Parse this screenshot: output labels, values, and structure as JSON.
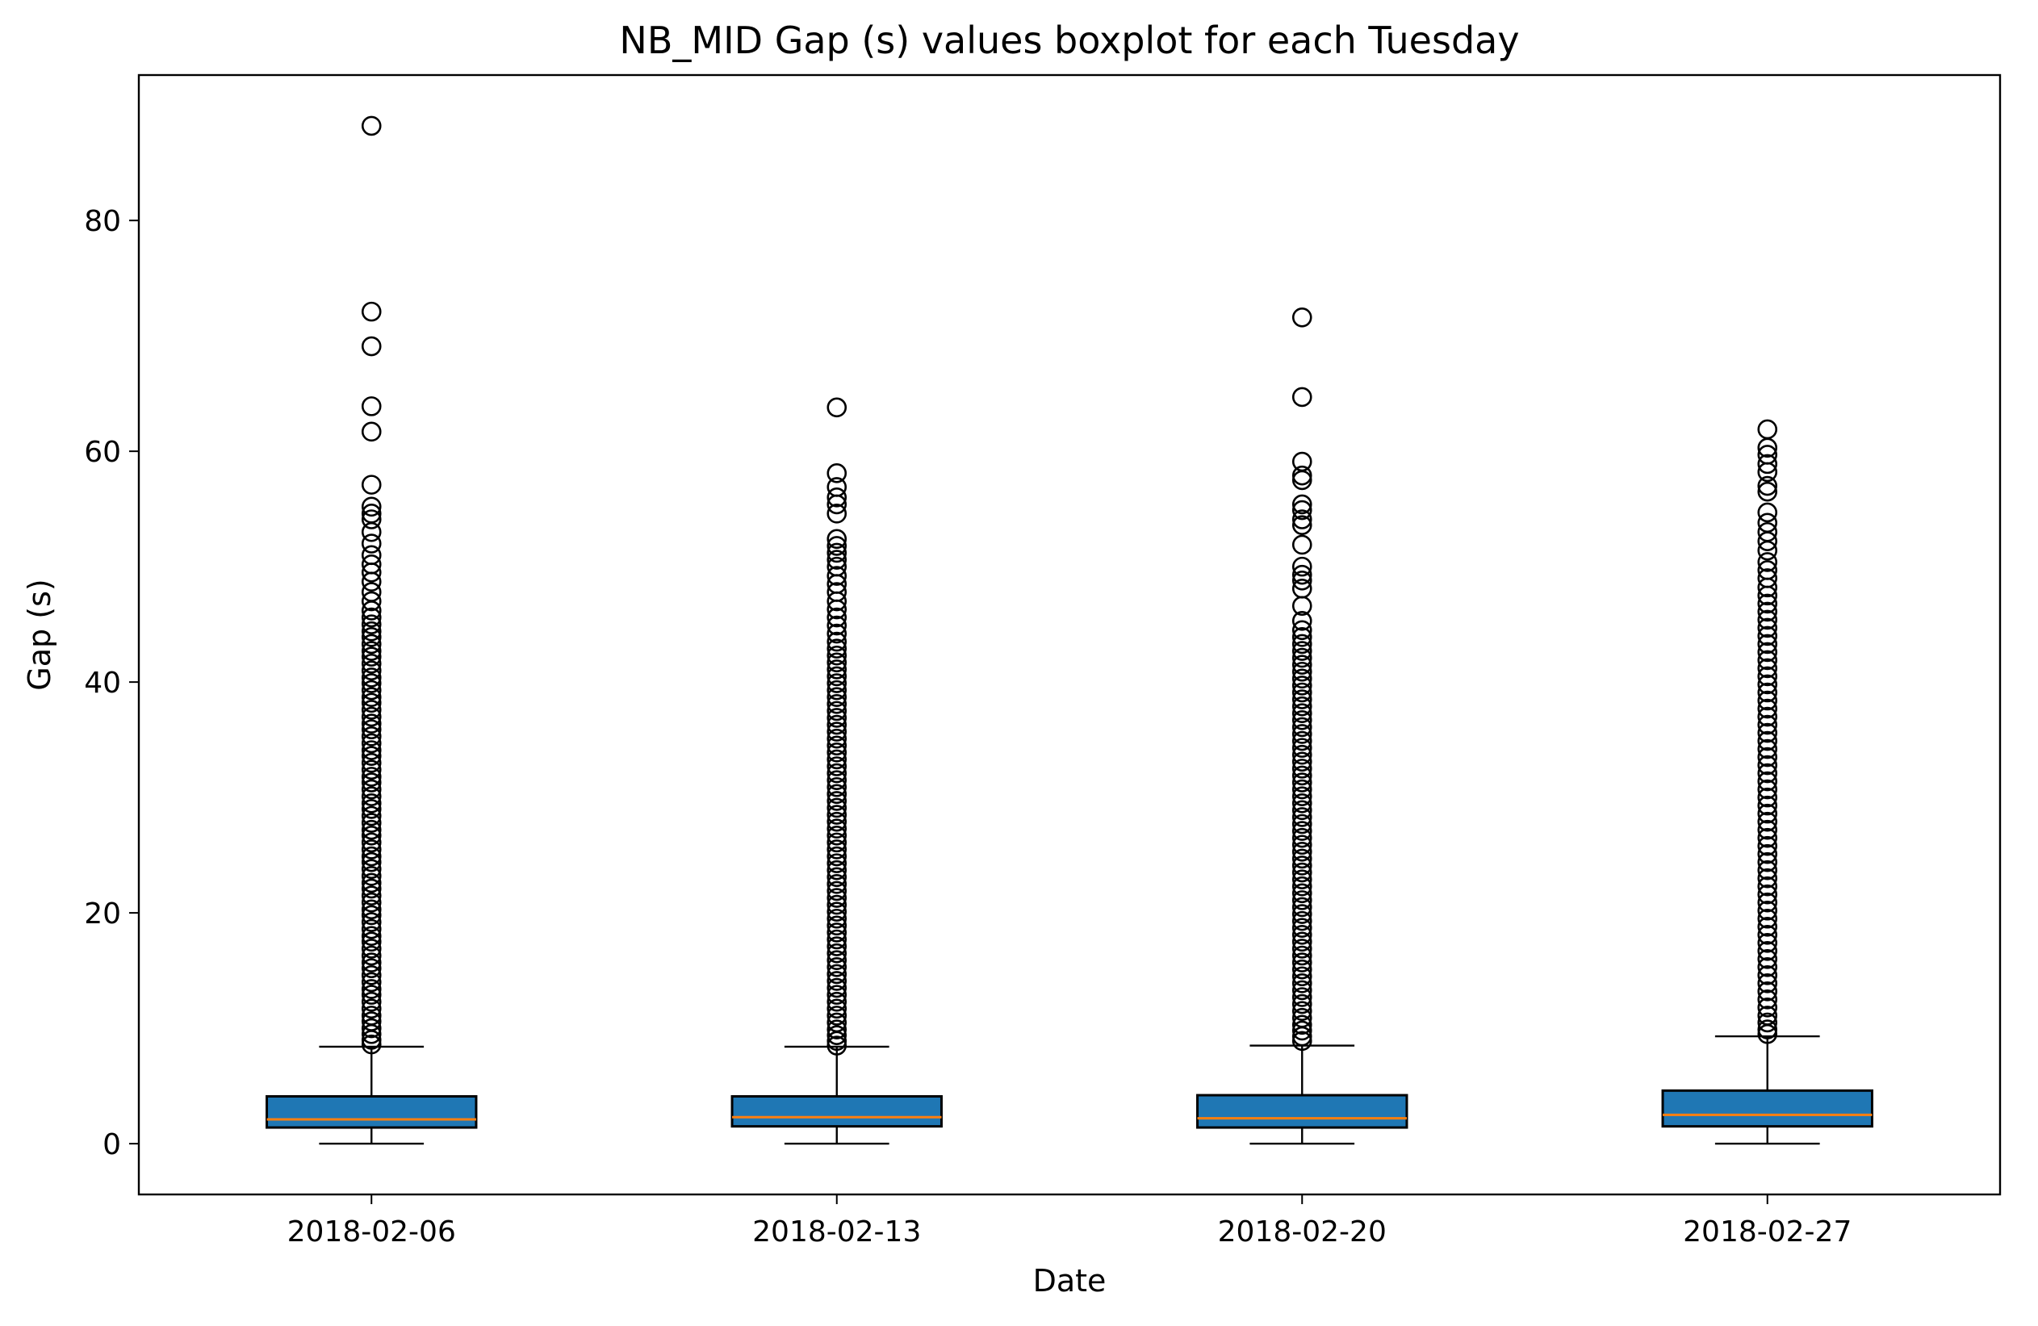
{
  "chart_data": {
    "type": "box",
    "title": "NB_MID Gap (s) values boxplot for each Tuesday",
    "xlabel": "Date",
    "ylabel": "Gap (s)",
    "ylim": [
      -4.4,
      92.6
    ],
    "yticks": [
      0,
      20,
      40,
      60,
      80
    ],
    "grid": false,
    "colors": {
      "box_fill": "#1f77b4",
      "median": "#ff7f0e",
      "edge": "#000000"
    },
    "categories": [
      "2018-02-06",
      "2018-02-13",
      "2018-02-20",
      "2018-02-27"
    ],
    "boxes": [
      {
        "category": "2018-02-06",
        "whisker_low": 0,
        "q1": 1.4,
        "median": 2.1,
        "q3": 4.1,
        "whisker_high": 8.4,
        "outliers": [
          88.2,
          72.1,
          69.1,
          63.9,
          61.7,
          57.1,
          55.2,
          54.6,
          54.1,
          53.0,
          52.0,
          51.0,
          50.2,
          49.5,
          48.7,
          47.8,
          47.0,
          46.2,
          45.6,
          45.0,
          44.4,
          43.9,
          43.3,
          42.7,
          42.2,
          41.6,
          41.0,
          40.4,
          39.9,
          39.3,
          38.7,
          38.2,
          37.6,
          37.0,
          36.4,
          35.9,
          35.3,
          34.7,
          34.1,
          33.6,
          33.0,
          32.4,
          31.8,
          31.3,
          30.7,
          30.1,
          29.5,
          29.0,
          28.4,
          27.8,
          27.2,
          26.7,
          26.1,
          25.5,
          24.9,
          24.4,
          23.8,
          23.2,
          22.6,
          22.1,
          21.5,
          20.9,
          20.3,
          19.8,
          19.2,
          18.6,
          18.0,
          17.5,
          16.9,
          16.3,
          15.7,
          15.2,
          14.6,
          14.0,
          13.4,
          12.9,
          12.3,
          11.7,
          11.1,
          10.6,
          10.0,
          9.5,
          9.0,
          8.6
        ]
      },
      {
        "category": "2018-02-13",
        "whisker_low": 0,
        "q1": 1.5,
        "median": 2.3,
        "q3": 4.1,
        "whisker_high": 8.4,
        "outliers": [
          63.8,
          58.1,
          56.9,
          56.0,
          55.4,
          54.6,
          52.4,
          51.8,
          51.2,
          50.6,
          50.0,
          49.2,
          48.5,
          47.8,
          47.0,
          46.3,
          45.6,
          44.9,
          44.2,
          43.5,
          42.9,
          42.3,
          41.7,
          41.1,
          40.5,
          39.9,
          39.3,
          38.7,
          38.1,
          37.5,
          36.9,
          36.3,
          35.7,
          35.1,
          34.5,
          33.9,
          33.3,
          32.7,
          32.1,
          31.5,
          30.9,
          30.3,
          29.7,
          29.1,
          28.5,
          27.9,
          27.3,
          26.7,
          26.1,
          25.5,
          24.9,
          24.3,
          23.7,
          23.1,
          22.5,
          21.9,
          21.3,
          20.7,
          20.1,
          19.5,
          18.9,
          18.3,
          17.7,
          17.1,
          16.5,
          15.9,
          15.3,
          14.7,
          14.1,
          13.5,
          12.9,
          12.3,
          11.7,
          11.1,
          10.5,
          9.9,
          9.4,
          8.9,
          8.5
        ]
      },
      {
        "category": "2018-02-20",
        "whisker_low": 0,
        "q1": 1.4,
        "median": 2.2,
        "q3": 4.2,
        "whisker_high": 8.5,
        "outliers": [
          71.6,
          64.7,
          59.1,
          57.9,
          57.5,
          55.4,
          54.9,
          54.1,
          53.6,
          51.9,
          50.0,
          49.3,
          48.8,
          48.1,
          46.6,
          45.3,
          44.5,
          43.9,
          43.3,
          42.7,
          42.1,
          41.5,
          40.9,
          40.3,
          39.7,
          39.1,
          38.5,
          37.9,
          37.3,
          36.7,
          36.1,
          35.5,
          34.9,
          34.3,
          33.7,
          33.1,
          32.5,
          31.9,
          31.3,
          30.7,
          30.1,
          29.5,
          28.9,
          28.3,
          27.7,
          27.1,
          26.5,
          25.9,
          25.3,
          24.7,
          24.1,
          23.5,
          22.9,
          22.3,
          21.7,
          21.1,
          20.5,
          19.9,
          19.3,
          18.7,
          18.1,
          17.5,
          16.9,
          16.3,
          15.7,
          15.1,
          14.5,
          13.9,
          13.3,
          12.7,
          12.1,
          11.5,
          10.9,
          10.3,
          9.8,
          9.3,
          8.9
        ]
      },
      {
        "category": "2018-02-27",
        "whisker_low": 0,
        "q1": 1.5,
        "median": 2.5,
        "q3": 4.6,
        "whisker_high": 9.3,
        "outliers": [
          61.9,
          60.3,
          59.7,
          58.9,
          58.2,
          57.0,
          56.5,
          54.7,
          53.8,
          53.0,
          52.2,
          51.4,
          50.4,
          49.7,
          49.0,
          48.2,
          47.5,
          46.8,
          46.1,
          45.4,
          44.7,
          44.0,
          43.3,
          42.6,
          41.9,
          41.2,
          40.5,
          39.8,
          39.1,
          38.4,
          37.7,
          37.0,
          36.3,
          35.6,
          34.9,
          34.2,
          33.5,
          32.8,
          32.1,
          31.4,
          30.7,
          30.0,
          29.3,
          28.6,
          27.9,
          27.2,
          26.5,
          25.8,
          25.1,
          24.4,
          23.7,
          23.0,
          22.3,
          21.6,
          20.9,
          20.2,
          19.5,
          18.8,
          18.1,
          17.4,
          16.7,
          16.0,
          15.3,
          14.6,
          13.9,
          13.2,
          12.5,
          11.8,
          11.1,
          10.5,
          9.9,
          9.5
        ]
      }
    ]
  }
}
